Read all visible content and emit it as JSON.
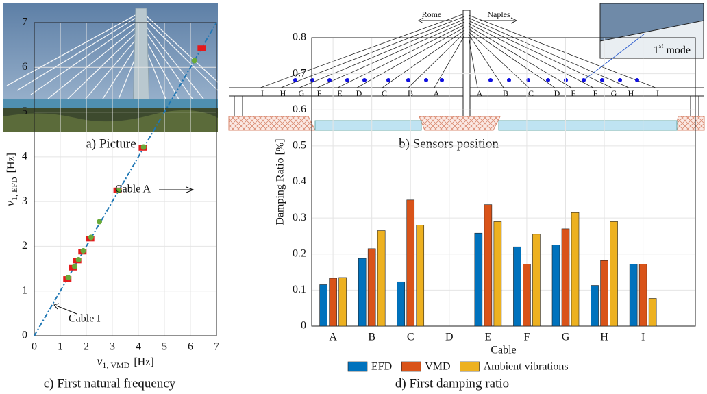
{
  "panel_a": {
    "caption": "a) Picture"
  },
  "panel_b": {
    "caption": "b) Sensors position",
    "left_city": "Rome",
    "right_city": "Naples",
    "left_cables": [
      "I",
      "H",
      "G",
      "F",
      "E",
      "D",
      "C",
      "B",
      "A"
    ],
    "right_cables": [
      "A",
      "B",
      "C",
      "D",
      "E",
      "F",
      "G",
      "H",
      "I"
    ]
  },
  "chart_data": [
    {
      "type": "scatter",
      "caption": "c) First natural frequency",
      "xlabel": {
        "symbol": "ν",
        "sub": "1, VMD",
        "unit": "[Hz]"
      },
      "ylabel": {
        "symbol": "ν",
        "sub": "1, EFD",
        "unit": "[Hz]"
      },
      "xlim": [
        0,
        7
      ],
      "ylim": [
        0,
        7
      ],
      "xticks": [
        0,
        1,
        2,
        3,
        4,
        5,
        6,
        7
      ],
      "yticks": [
        0,
        1,
        2,
        3,
        4,
        5,
        6,
        7
      ],
      "grid": true,
      "annotations": [
        "Cable A",
        "Cable I"
      ],
      "reference_line": {
        "color": "#1f77b4",
        "x": [
          0,
          7
        ],
        "values": [
          0,
          7
        ]
      },
      "series": [
        {
          "color": "#e41a1c",
          "marker": "square",
          "x": [
            1.27,
            1.5,
            1.65,
            1.85,
            2.15,
            3.2,
            4.17,
            6.43
          ],
          "values": [
            1.27,
            1.52,
            1.68,
            1.88,
            2.17,
            3.25,
            4.2,
            6.43
          ]
        },
        {
          "color": "#6aaa3a",
          "marker": "circle",
          "x": [
            1.3,
            1.55,
            1.7,
            1.88,
            2.18,
            2.5,
            3.25,
            4.2,
            6.15
          ],
          "values": [
            1.3,
            1.55,
            1.7,
            1.9,
            2.2,
            2.55,
            3.25,
            4.22,
            6.15
          ]
        }
      ]
    },
    {
      "type": "bar",
      "caption": "d) First damping ratio",
      "xlabel": "Cable",
      "ylabel": "Damping Ratio [%]",
      "annotation": {
        "base": "1",
        "sup": "st",
        "rest": "mode"
      },
      "categories": [
        "A",
        "B",
        "C",
        "D",
        "E",
        "F",
        "G",
        "H",
        "I"
      ],
      "ylim": [
        0,
        0.8
      ],
      "yticks": [
        0,
        0.1,
        0.2,
        0.3,
        0.4,
        0.5,
        0.6,
        0.7,
        0.8
      ],
      "grid": true,
      "series": [
        {
          "name": "EFD",
          "color": "#0072bd",
          "values": [
            0.115,
            0.188,
            0.123,
            null,
            0.258,
            0.22,
            0.225,
            0.113,
            0.172
          ]
        },
        {
          "name": "VMD",
          "color": "#d95319",
          "values": [
            0.133,
            0.215,
            0.35,
            null,
            0.337,
            0.172,
            0.27,
            0.182,
            0.172
          ]
        },
        {
          "name": "Ambient vibrations",
          "color": "#edb120",
          "values": [
            0.135,
            0.265,
            0.28,
            null,
            0.29,
            0.255,
            0.315,
            0.29,
            0.077
          ]
        }
      ]
    }
  ]
}
